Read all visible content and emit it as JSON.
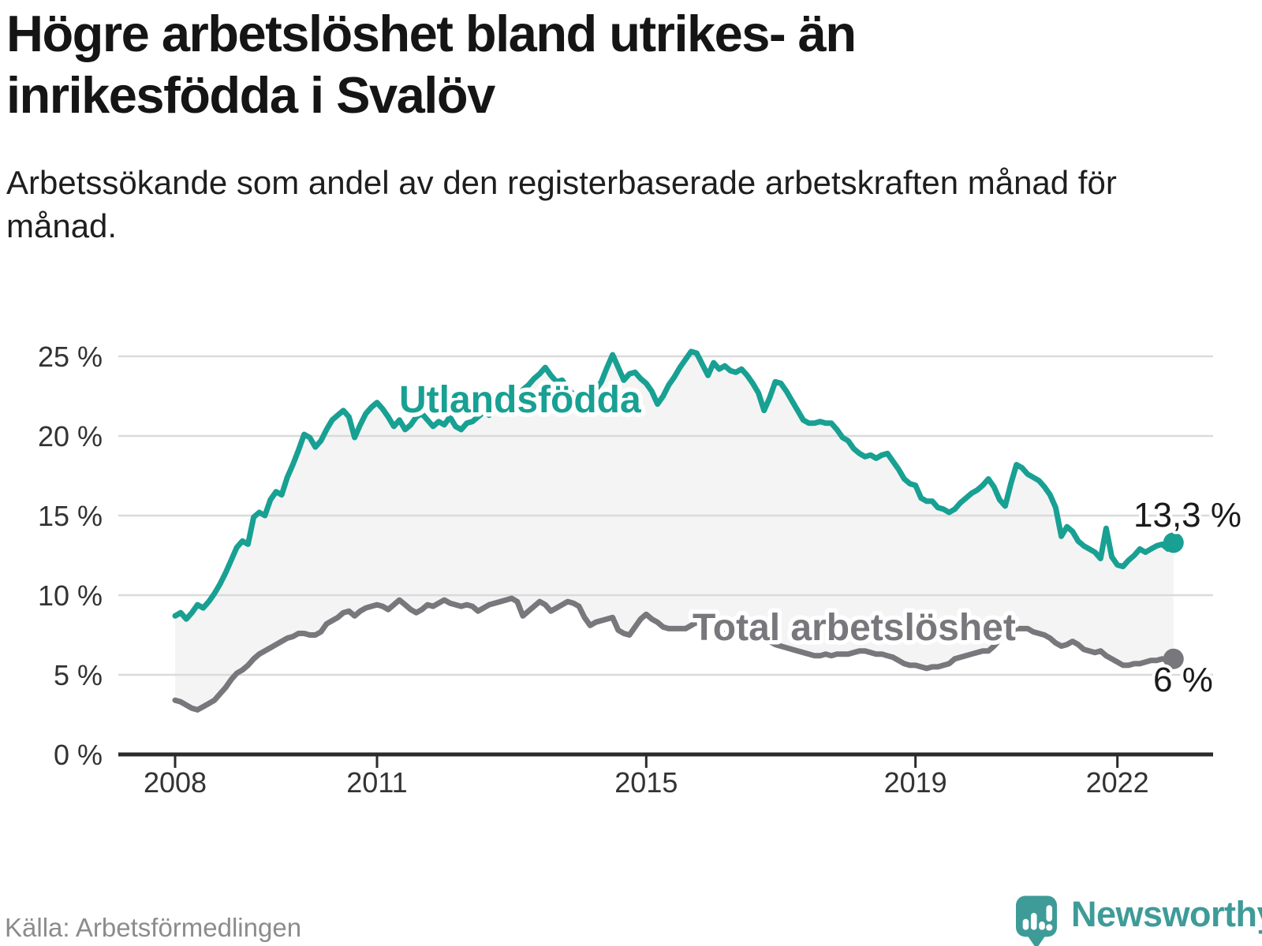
{
  "page": {
    "title": "Högre arbetslöshet bland utrikes- än inrikesfödda i Svalöv",
    "subtitle": "Arbetssökande som andel av den registerbaserade arbetskraften månad för månad.",
    "source": "Källa: Arbetsförmedlingen"
  },
  "branding": {
    "name": "Newsworthy",
    "icon": "map-pin-bar-chart-exclamation-icon",
    "color": "#3E9B98"
  },
  "colors": {
    "utlandsfodda": "#18A093",
    "total": "#77777C",
    "area_fill": "#F4F4F4",
    "gridline": "#DADADA",
    "axis": "#2B2B2B",
    "tick_label": "#333333",
    "title": "#151515",
    "subtitle": "#1E1E1E",
    "source": "#8C8C8C"
  },
  "chart_data": {
    "type": "line",
    "title": "Högre arbetslöshet bland utrikes- än inrikesfödda i Svalöv",
    "x_start": "2008-01",
    "x_end": "2022-11",
    "x_frequency": "monthly",
    "ylim": [
      0,
      25
    ],
    "grid": true,
    "y_ticks": [
      {
        "value": 0,
        "label": "0 %"
      },
      {
        "value": 5,
        "label": "5 %"
      },
      {
        "value": 10,
        "label": "10 %"
      },
      {
        "value": 15,
        "label": "15 %"
      },
      {
        "value": 20,
        "label": "20 %"
      },
      {
        "value": 25,
        "label": "25 %"
      }
    ],
    "x_ticks": [
      {
        "year": 2008,
        "label": "2008"
      },
      {
        "year": 2011,
        "label": "2011"
      },
      {
        "year": 2015,
        "label": "2015"
      },
      {
        "year": 2019,
        "label": "2019"
      },
      {
        "year": 2022,
        "label": "2022"
      }
    ],
    "area_fill_between_series": true,
    "series": [
      {
        "name": "Utlandsfödda",
        "color": "#18A093",
        "end_label": "13,3 %",
        "end_value": 13.3,
        "values": [
          8.7,
          8.9,
          8.5,
          8.9,
          9.4,
          9.2,
          9.6,
          10.1,
          10.7,
          11.4,
          12.2,
          13.0,
          13.4,
          13.2,
          14.9,
          15.2,
          15.0,
          16.0,
          16.5,
          16.3,
          17.4,
          18.2,
          19.1,
          20.1,
          19.9,
          19.3,
          19.7,
          20.4,
          21.0,
          21.3,
          21.6,
          21.2,
          19.9,
          20.7,
          21.4,
          21.8,
          22.1,
          21.7,
          21.2,
          20.6,
          21.0,
          20.4,
          20.7,
          21.2,
          21.4,
          21.0,
          20.6,
          20.9,
          20.7,
          21.2,
          20.6,
          20.4,
          20.8,
          20.9,
          21.2,
          21.5,
          21.3,
          21.8,
          22.0,
          21.7,
          22.1,
          22.4,
          22.9,
          23.2,
          23.6,
          23.9,
          24.3,
          23.8,
          23.4,
          23.5,
          23.0,
          22.6,
          22.4,
          22.7,
          22.5,
          22.9,
          23.4,
          24.3,
          25.1,
          24.3,
          23.5,
          23.9,
          24.0,
          23.6,
          23.3,
          22.8,
          22.0,
          22.5,
          23.2,
          23.7,
          24.3,
          24.8,
          25.3,
          25.2,
          24.5,
          23.8,
          24.6,
          24.2,
          24.4,
          24.1,
          24.0,
          24.2,
          23.8,
          23.3,
          22.7,
          21.6,
          22.4,
          23.4,
          23.3,
          22.8,
          22.2,
          21.6,
          21.0,
          20.8,
          20.8,
          20.9,
          20.8,
          20.8,
          20.4,
          19.9,
          19.7,
          19.2,
          18.9,
          18.7,
          18.8,
          18.6,
          18.8,
          18.9,
          18.4,
          17.9,
          17.3,
          17.0,
          16.9,
          16.1,
          15.9,
          15.9,
          15.5,
          15.4,
          15.2,
          15.4,
          15.8,
          16.1,
          16.4,
          16.6,
          16.9,
          17.3,
          16.8,
          16.0,
          15.6,
          17.0,
          18.2,
          18.0,
          17.6,
          17.4,
          17.2,
          16.8,
          16.3,
          15.5,
          13.7,
          14.3,
          14.0,
          13.4,
          13.1,
          12.9,
          12.7,
          12.3,
          14.2,
          12.4,
          11.9,
          11.8,
          12.2,
          12.5,
          12.9,
          12.7,
          12.9,
          13.1,
          13.2,
          12.9,
          13.3
        ]
      },
      {
        "name": "Total arbetslöshet",
        "color": "#77777C",
        "end_label": "6 %",
        "end_value": 6.0,
        "values": [
          3.4,
          3.3,
          3.1,
          2.9,
          2.8,
          3.0,
          3.2,
          3.4,
          3.8,
          4.2,
          4.7,
          5.1,
          5.3,
          5.6,
          6.0,
          6.3,
          6.5,
          6.7,
          6.9,
          7.1,
          7.3,
          7.4,
          7.6,
          7.6,
          7.5,
          7.5,
          7.7,
          8.2,
          8.4,
          8.6,
          8.9,
          9.0,
          8.7,
          9.0,
          9.2,
          9.3,
          9.4,
          9.3,
          9.1,
          9.4,
          9.7,
          9.4,
          9.1,
          8.9,
          9.1,
          9.4,
          9.3,
          9.5,
          9.7,
          9.5,
          9.4,
          9.3,
          9.4,
          9.3,
          9.0,
          9.2,
          9.4,
          9.5,
          9.6,
          9.7,
          9.8,
          9.6,
          8.7,
          9.0,
          9.3,
          9.6,
          9.4,
          9.0,
          9.2,
          9.4,
          9.6,
          9.5,
          9.3,
          8.6,
          8.1,
          8.3,
          8.4,
          8.5,
          8.6,
          7.8,
          7.6,
          7.5,
          8.0,
          8.5,
          8.8,
          8.5,
          8.3,
          8.0,
          7.9,
          7.9,
          7.9,
          7.9,
          8.1,
          8.3,
          8.0,
          7.8,
          7.6,
          7.5,
          7.6,
          7.7,
          7.6,
          7.4,
          7.2,
          7.3,
          7.4,
          7.3,
          7.1,
          6.9,
          6.8,
          6.7,
          6.6,
          6.5,
          6.4,
          6.3,
          6.2,
          6.2,
          6.3,
          6.2,
          6.3,
          6.3,
          6.3,
          6.4,
          6.5,
          6.5,
          6.4,
          6.3,
          6.3,
          6.2,
          6.1,
          5.9,
          5.7,
          5.6,
          5.6,
          5.5,
          5.4,
          5.5,
          5.5,
          5.6,
          5.7,
          6.0,
          6.1,
          6.2,
          6.3,
          6.4,
          6.5,
          6.5,
          6.8,
          7.2,
          7.4,
          7.7,
          7.9,
          7.9,
          7.9,
          7.7,
          7.6,
          7.5,
          7.3,
          7.0,
          6.8,
          6.9,
          7.1,
          6.9,
          6.6,
          6.5,
          6.4,
          6.5,
          6.2,
          6.0,
          5.8,
          5.6,
          5.6,
          5.7,
          5.7,
          5.8,
          5.9,
          5.9,
          6.0,
          5.9,
          6.0
        ]
      }
    ]
  }
}
